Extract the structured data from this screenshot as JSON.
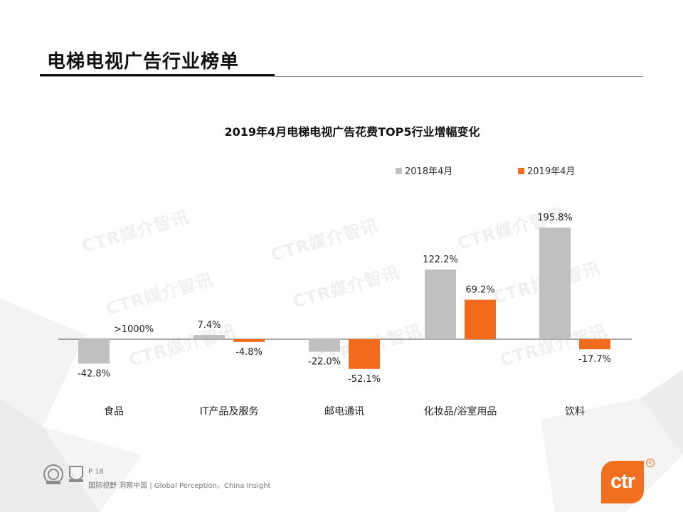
{
  "page": {
    "title": "电梯电视广告行业榜单",
    "page_number": "P 18",
    "footer_text": "国际视野 洞察中国 | Global Perception，China Insight",
    "logo_text": "ctr",
    "logo_mark": "®",
    "watermark_text": "CTR媒介智讯"
  },
  "colors": {
    "series_2018": "#c0c0c0",
    "series_2019": "#f26a1b",
    "accent": "#f07020"
  },
  "chart_data": {
    "type": "bar",
    "title": "2019年4月电梯电视广告花费TOP5行业增幅变化",
    "categories": [
      "食品",
      "IT产品及服务",
      "邮电通讯",
      "化妆品/浴室用品",
      "饮料"
    ],
    "series": [
      {
        "name": "2018年4月",
        "values": [
          -42.8,
          7.4,
          -22.0,
          122.2,
          195.8
        ],
        "labels": [
          "-42.8%",
          "7.4%",
          "-22.0%",
          "122.2%",
          "195.8%"
        ]
      },
      {
        "name": "2019年4月",
        "values": [
          null,
          -4.8,
          -52.1,
          69.2,
          -17.7
        ],
        "labels": [
          ">1000%",
          "-4.8%",
          "-52.1%",
          "69.2%",
          "-17.7%"
        ]
      }
    ],
    "legend_position": "top-right",
    "grid": false
  }
}
